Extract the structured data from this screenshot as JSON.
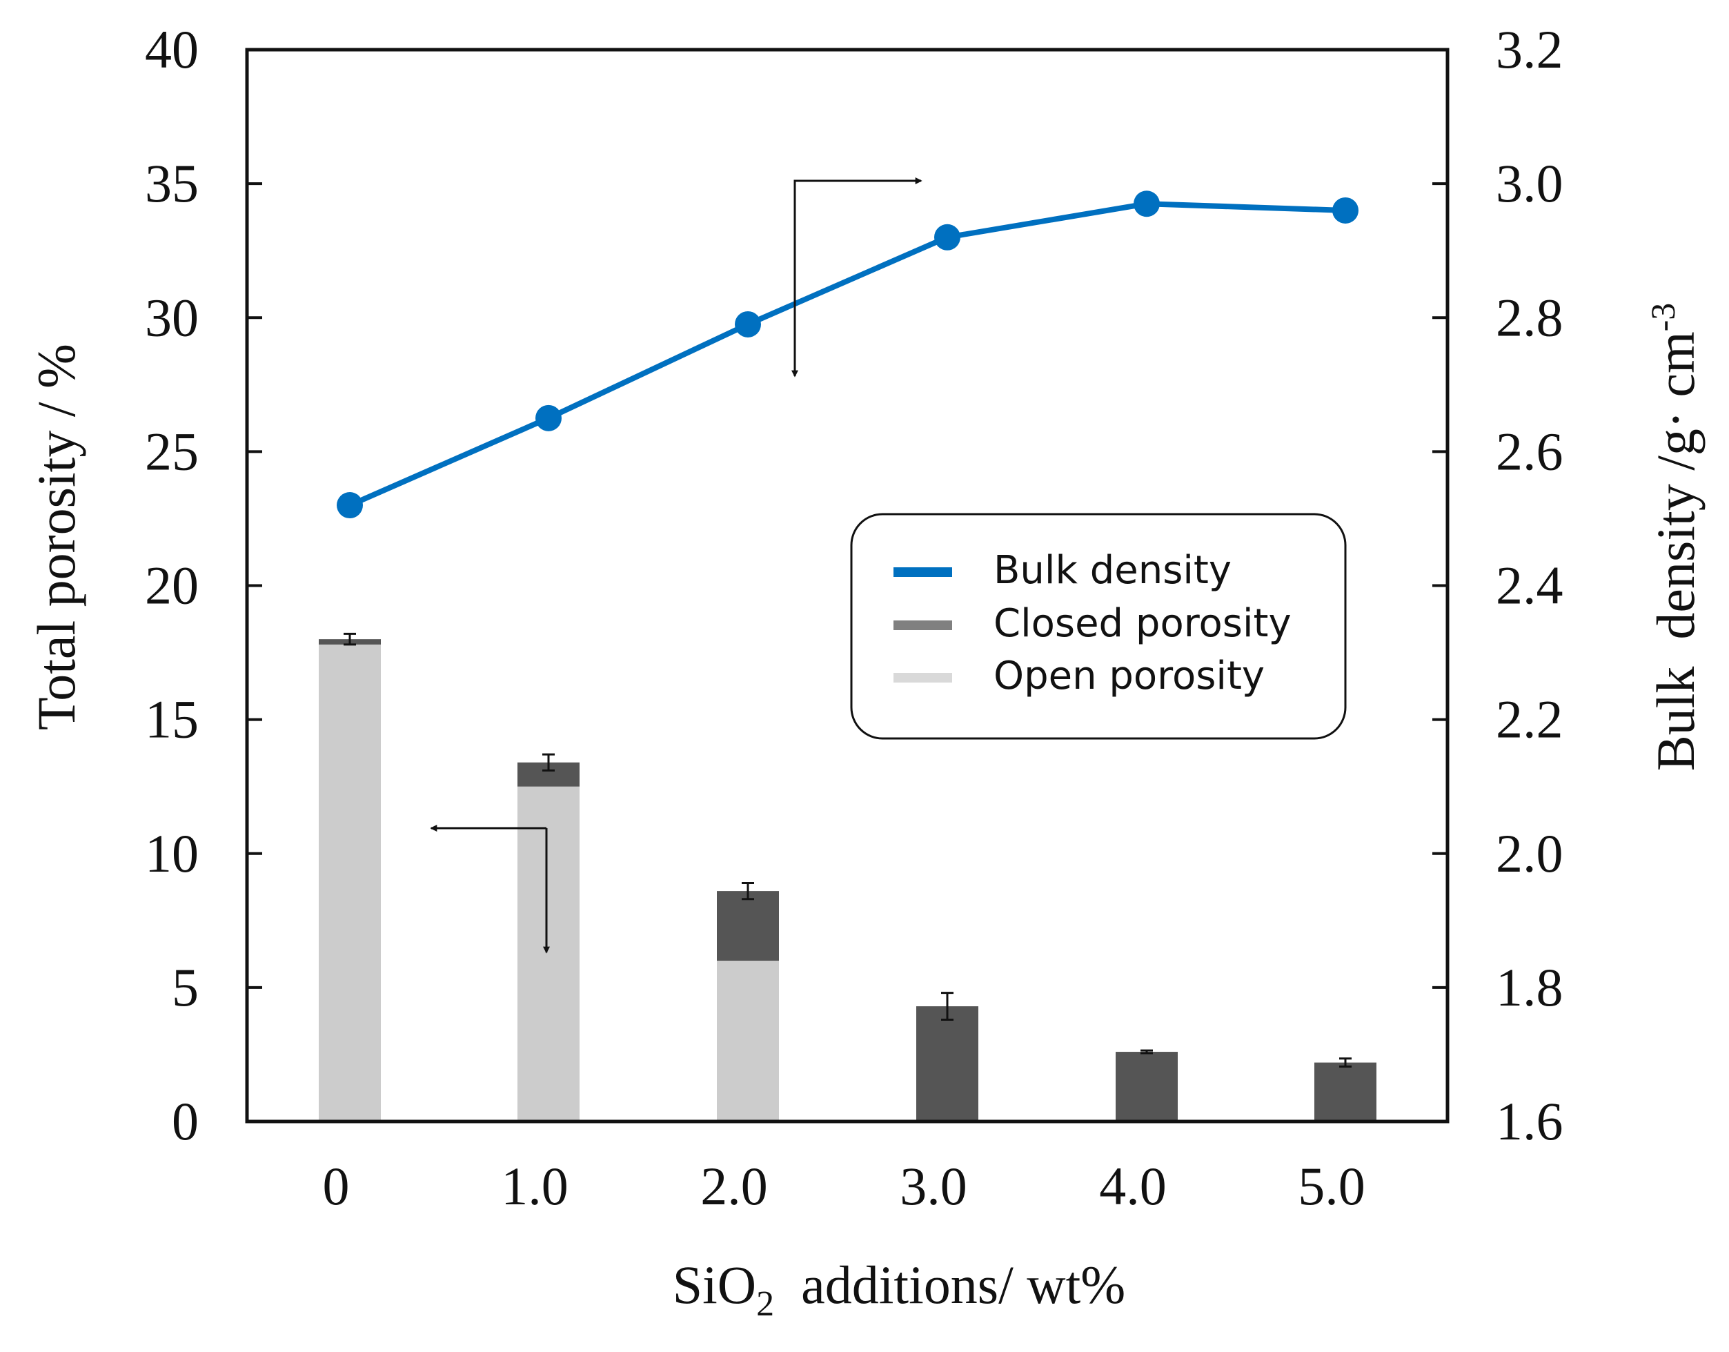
{
  "chart_data": {
    "type": "bar",
    "categories": [
      "0",
      "1.0",
      "2.0",
      "3.0",
      "4.0",
      "5.0"
    ],
    "series": [
      {
        "name": "Open porosity",
        "type": "bar",
        "axis": "left",
        "stack": "porosity",
        "color": "#cccccc",
        "values": [
          17.8,
          12.5,
          6.0,
          0,
          0,
          0
        ]
      },
      {
        "name": "Closed porosity",
        "type": "bar",
        "axis": "left",
        "stack": "porosity",
        "color": "#555555",
        "values": [
          0.2,
          0.9,
          2.6,
          4.3,
          2.6,
          2.2
        ],
        "error": [
          0.2,
          0.3,
          0.3,
          0.5,
          0.05,
          0.15
        ]
      },
      {
        "name": "Bulk density",
        "type": "line",
        "axis": "right",
        "color": "#0070c0",
        "values": [
          2.52,
          2.65,
          2.79,
          2.92,
          2.97,
          2.96
        ]
      }
    ],
    "xlabel": {
      "main": "SiO",
      "sub": "2",
      "rest": "  additions/ wt%"
    },
    "ylabel_left": "Total porosity / %",
    "ylabel_right": {
      "main": "Bulk  density /g· cm",
      "sup": "-3"
    },
    "ylim_left": [
      0,
      40
    ],
    "ylim_right": [
      1.6,
      3.2
    ],
    "yticks_left": [
      "0",
      "5",
      "10",
      "15",
      "20",
      "25",
      "30",
      "35",
      "40"
    ],
    "yticks_right": [
      "1.6",
      "1.8",
      "2.0",
      "2.2",
      "2.4",
      "2.6",
      "2.8",
      "3.0",
      "3.2"
    ],
    "grid": false,
    "legend": {
      "position": "center-right",
      "entries": [
        {
          "label": "Bulk density",
          "color": "#0070c0"
        },
        {
          "label": "Closed porosity",
          "color": "#808080"
        },
        {
          "label": "Open porosity",
          "color": "#d9d9d9"
        }
      ]
    },
    "annotations": [
      {
        "type": "axis-pointer-arrow",
        "target": "right-axis",
        "series": "Bulk density"
      },
      {
        "type": "axis-pointer-arrow",
        "target": "left-axis",
        "series": "porosity"
      }
    ]
  }
}
